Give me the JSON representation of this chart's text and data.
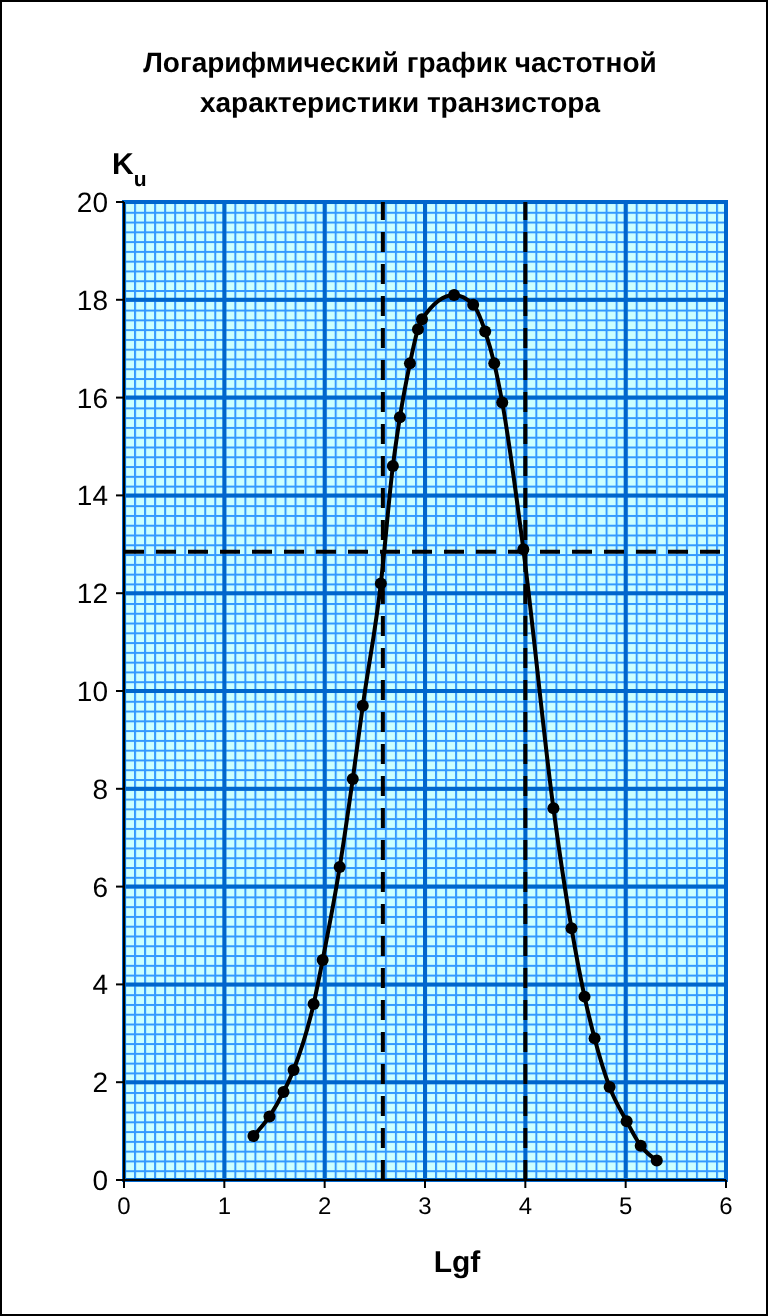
{
  "chart_data": {
    "type": "line",
    "title": "Логарифмический график частотной\nхарактеристики транзистора",
    "xlabel": "Lgf",
    "ylabel": "K$_{u}$",
    "x": [
      1.29,
      1.45,
      1.59,
      1.69,
      1.89,
      1.98,
      2.15,
      2.28,
      2.38,
      2.56,
      2.68,
      2.75,
      2.85,
      2.93,
      2.97,
      3.29,
      3.48,
      3.6,
      3.69,
      3.77,
      3.98,
      4.28,
      4.46,
      4.59,
      4.69,
      4.84,
      5.01,
      5.15,
      5.31
    ],
    "series": [
      {
        "color": "#000000",
        "values": [
          0.9,
          1.3,
          1.8,
          2.25,
          3.6,
          4.5,
          6.4,
          8.2,
          9.7,
          12.2,
          14.6,
          15.6,
          16.7,
          17.4,
          17.6,
          18.1,
          17.9,
          17.35,
          16.7,
          15.9,
          12.9,
          7.6,
          5.15,
          3.75,
          2.9,
          1.9,
          1.2,
          0.7,
          0.4
        ]
      }
    ],
    "xlim": [
      0,
      6
    ],
    "ylim": [
      0,
      20
    ],
    "xticks": [
      0,
      1,
      2,
      3,
      4,
      5,
      6
    ],
    "yticks": [
      0,
      2,
      4,
      6,
      8,
      10,
      12,
      14,
      16,
      18,
      20
    ],
    "grid": true,
    "marker": "circle",
    "line_style": "solid",
    "ref_lines": [
      {
        "axis": "y",
        "value": 12.85,
        "color": "#000000",
        "line_style": "dashed"
      },
      {
        "axis": "x",
        "value": 2.58,
        "color": "#000000",
        "line_style": "dashed"
      },
      {
        "axis": "x",
        "value": 4.0,
        "color": "#000000",
        "line_style": "dashed"
      }
    ]
  }
}
